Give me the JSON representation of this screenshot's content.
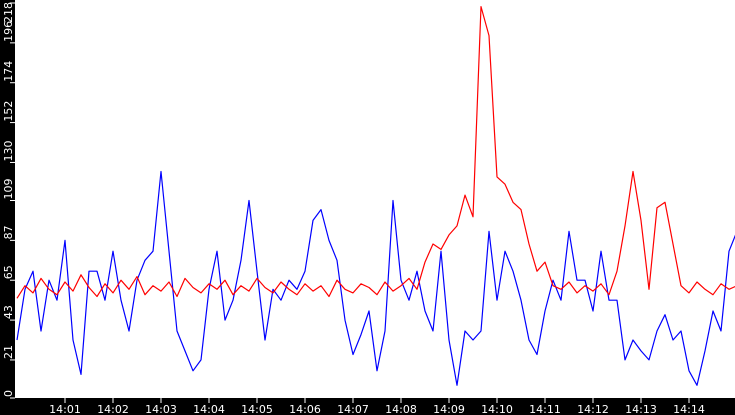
{
  "chart_data": {
    "type": "line",
    "title": "",
    "xlabel": "",
    "ylabel": "",
    "ylim": [
      0,
      218
    ],
    "xlim": [
      "14:00:00",
      "14:15:00"
    ],
    "grid": false,
    "background": "#ffffff",
    "frame_color": "#000000",
    "y_ticks": [
      "0",
      "21",
      "43",
      "65",
      "87",
      "109",
      "130",
      "152",
      "174",
      "196",
      "218"
    ],
    "x_ticks": [
      "14:01",
      "14:02",
      "14:03",
      "14:04",
      "14:05",
      "14:06",
      "14:07",
      "14:08",
      "14:09",
      "14:10",
      "14:11",
      "14:12",
      "14:13",
      "14:14"
    ],
    "x": [
      "14:00:00",
      "14:00:10",
      "14:00:20",
      "14:00:30",
      "14:00:40",
      "14:00:50",
      "14:01:00",
      "14:01:10",
      "14:01:20",
      "14:01:30",
      "14:01:40",
      "14:01:50",
      "14:02:00",
      "14:02:10",
      "14:02:20",
      "14:02:30",
      "14:02:40",
      "14:02:50",
      "14:03:00",
      "14:03:10",
      "14:03:20",
      "14:03:30",
      "14:03:40",
      "14:03:50",
      "14:04:00",
      "14:04:10",
      "14:04:20",
      "14:04:30",
      "14:04:40",
      "14:04:50",
      "14:05:00",
      "14:05:10",
      "14:05:20",
      "14:05:30",
      "14:05:40",
      "14:05:50",
      "14:06:00",
      "14:06:10",
      "14:06:20",
      "14:06:30",
      "14:06:40",
      "14:06:50",
      "14:07:00",
      "14:07:10",
      "14:07:20",
      "14:07:30",
      "14:07:40",
      "14:07:50",
      "14:08:00",
      "14:08:10",
      "14:08:20",
      "14:08:30",
      "14:08:40",
      "14:08:50",
      "14:09:00",
      "14:09:10",
      "14:09:20",
      "14:09:30",
      "14:09:40",
      "14:09:50",
      "14:10:00",
      "14:10:10",
      "14:10:20",
      "14:10:30",
      "14:10:40",
      "14:10:50",
      "14:11:00",
      "14:11:10",
      "14:11:20",
      "14:11:30",
      "14:11:40",
      "14:11:50",
      "14:12:00",
      "14:12:10",
      "14:12:20",
      "14:12:30",
      "14:12:40",
      "14:12:50",
      "14:13:00",
      "14:13:10",
      "14:13:20",
      "14:13:30",
      "14:13:40",
      "14:13:50",
      "14:14:00",
      "14:14:10",
      "14:14:20",
      "14:14:30",
      "14:14:40",
      "14:14:50",
      "14:15:00"
    ],
    "series": [
      {
        "color": "#0000ff",
        "values": [
          32,
          60,
          70,
          37,
          65,
          54,
          87,
          32,
          13,
          70,
          70,
          54,
          81,
          54,
          37,
          65,
          76,
          81,
          125,
          81,
          37,
          26,
          15,
          21,
          60,
          81,
          43,
          54,
          76,
          109,
          70,
          32,
          60,
          54,
          65,
          60,
          70,
          98,
          104,
          87,
          76,
          43,
          24,
          35,
          48,
          15,
          37,
          109,
          65,
          54,
          70,
          48,
          37,
          81,
          32,
          7,
          37,
          32,
          37,
          92,
          54,
          81,
          70,
          54,
          32,
          24,
          48,
          65,
          54,
          92,
          65,
          65,
          48,
          81,
          54,
          54,
          21,
          32,
          26,
          21,
          37,
          46,
          32,
          37,
          15,
          7,
          26,
          48,
          37,
          81,
          92
        ]
      },
      {
        "color": "#ff0000",
        "values": [
          55,
          62,
          58,
          66,
          60,
          57,
          64,
          59,
          68,
          61,
          56,
          63,
          58,
          65,
          60,
          67,
          57,
          62,
          59,
          64,
          56,
          66,
          61,
          58,
          63,
          60,
          65,
          57,
          62,
          59,
          66,
          61,
          58,
          64,
          60,
          57,
          63,
          59,
          62,
          56,
          65,
          60,
          58,
          63,
          61,
          57,
          64,
          59,
          62,
          66,
          60,
          75,
          85,
          82,
          90,
          95,
          112,
          100,
          216,
          200,
          122,
          118,
          108,
          104,
          85,
          70,
          75,
          62,
          60,
          64,
          58,
          62,
          59,
          63,
          57,
          70,
          95,
          125,
          98,
          60,
          105,
          108,
          85,
          62,
          58,
          64,
          60,
          57,
          63,
          60,
          62
        ]
      }
    ]
  }
}
